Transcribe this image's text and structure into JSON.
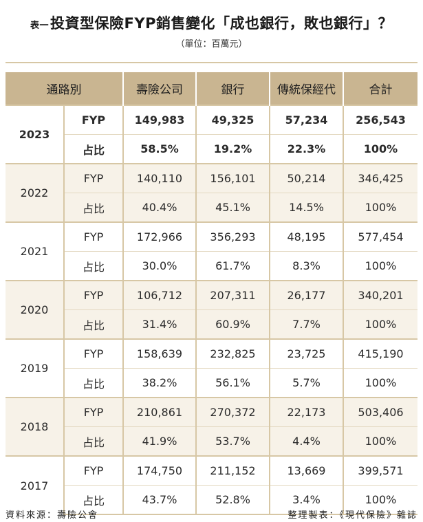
{
  "title": {
    "prefix": "表一",
    "text": "投資型保險FYP銷售變化「成也銀行，敗也銀行」？",
    "unit": "（單位：百萬元）"
  },
  "table": {
    "headers": [
      "通路別",
      "壽險公司",
      "銀行",
      "傳統保經代",
      "合計"
    ],
    "groups": [
      {
        "year": "2023",
        "fyp": [
          "149,983",
          "49,325",
          "57,234",
          "256,543"
        ],
        "share": [
          "58.5%",
          "19.2%",
          "22.3%",
          "100%"
        ]
      },
      {
        "year": "2022",
        "fyp": [
          "140,110",
          "156,101",
          "50,214",
          "346,425"
        ],
        "share": [
          "40.4%",
          "45.1%",
          "14.5%",
          "100%"
        ]
      },
      {
        "year": "2021",
        "fyp": [
          "172,966",
          "356,293",
          "48,195",
          "577,454"
        ],
        "share": [
          "30.0%",
          "61.7%",
          "8.3%",
          "100%"
        ]
      },
      {
        "year": "2020",
        "fyp": [
          "106,712",
          "207,311",
          "26,177",
          "340,201"
        ],
        "share": [
          "31.4%",
          "60.9%",
          "7.7%",
          "100%"
        ]
      },
      {
        "year": "2019",
        "fyp": [
          "158,639",
          "232,825",
          "23,725",
          "415,190"
        ],
        "share": [
          "38.2%",
          "56.1%",
          "5.7%",
          "100%"
        ]
      },
      {
        "year": "2018",
        "fyp": [
          "210,861",
          "270,372",
          "22,173",
          "503,406"
        ],
        "share": [
          "41.9%",
          "53.7%",
          "4.4%",
          "100%"
        ]
      },
      {
        "year": "2017",
        "fyp": [
          "174,750",
          "211,152",
          "13,669",
          "399,571"
        ],
        "share": [
          "43.7%",
          "52.8%",
          "3.4%",
          "100%"
        ]
      }
    ],
    "row_labels": {
      "fyp": "FYP",
      "share": "占比"
    }
  },
  "footer": {
    "source": "資料來源：壽險公會",
    "credit": "整理製表：《現代保險》雜誌"
  }
}
